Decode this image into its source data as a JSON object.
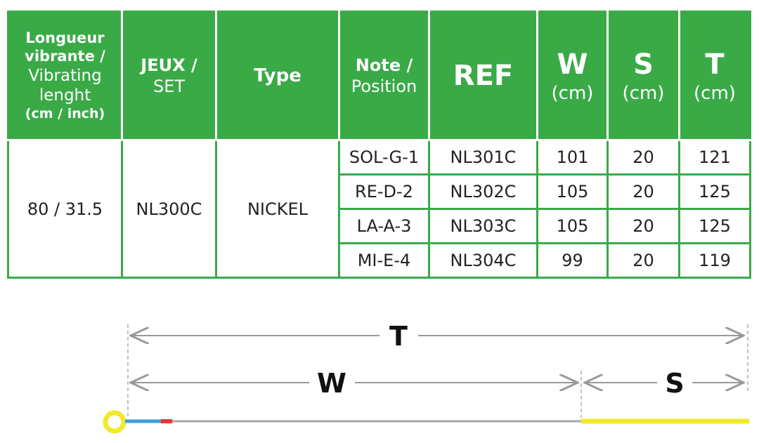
{
  "table": {
    "header": {
      "length": [
        "Longueur",
        "vibrante /",
        "Vibrating",
        "lenght",
        "(cm / inch)"
      ],
      "set": [
        "JEUX /",
        "SET"
      ],
      "type": "Type",
      "note": [
        "Note /",
        "Position"
      ],
      "ref": "REF",
      "w": [
        "W",
        "(cm)"
      ],
      "s": [
        "S",
        "(cm)"
      ],
      "t": [
        "T",
        "(cm)"
      ]
    },
    "length": "80 / 31.5",
    "set": "NL300C",
    "type": "NICKEL",
    "rows": [
      [
        "SOL-G-1",
        "NL301C",
        "101",
        "20",
        "121"
      ],
      [
        "RE-D-2",
        "NL302C",
        "105",
        "20",
        "125"
      ],
      [
        "LA-A-3",
        "NL303C",
        "105",
        "20",
        "125"
      ],
      [
        "MI-E-4",
        "NL304C",
        "99",
        "20",
        "119"
      ]
    ]
  },
  "diagram": {
    "total": "T",
    "winding": "W",
    "silk": "S"
  }
}
